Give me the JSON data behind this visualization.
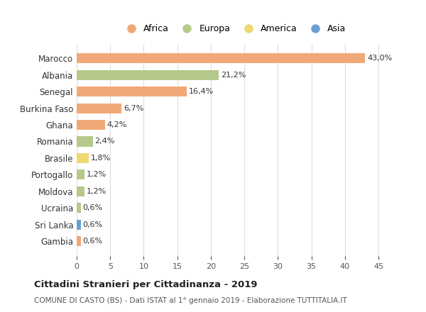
{
  "countries": [
    "Marocco",
    "Albania",
    "Senegal",
    "Burkina Faso",
    "Ghana",
    "Romania",
    "Brasile",
    "Portogallo",
    "Moldova",
    "Ucraina",
    "Sri Lanka",
    "Gambia"
  ],
  "values": [
    43.0,
    21.2,
    16.4,
    6.7,
    4.2,
    2.4,
    1.8,
    1.2,
    1.2,
    0.6,
    0.6,
    0.6
  ],
  "labels": [
    "43,0%",
    "21,2%",
    "16,4%",
    "6,7%",
    "4,2%",
    "2,4%",
    "1,8%",
    "1,2%",
    "1,2%",
    "0,6%",
    "0,6%",
    "0,6%"
  ],
  "colors": [
    "#F0A878",
    "#B5C98A",
    "#F0A878",
    "#F0A878",
    "#F0A878",
    "#B5C98A",
    "#F0D870",
    "#B5C98A",
    "#B5C98A",
    "#B5C98A",
    "#6A9FD0",
    "#F0A878"
  ],
  "legend_labels": [
    "Africa",
    "Europa",
    "America",
    "Asia"
  ],
  "legend_colors": [
    "#F0A878",
    "#B5C98A",
    "#F0D870",
    "#6A9FD0"
  ],
  "title": "Cittadini Stranieri per Cittadinanza - 2019",
  "subtitle": "COMUNE DI CASTO (BS) - Dati ISTAT al 1° gennaio 2019 - Elaborazione TUTTITALIA.IT",
  "xlim": [
    0,
    47
  ],
  "xticks": [
    0,
    5,
    10,
    15,
    20,
    25,
    30,
    35,
    40,
    45
  ],
  "background_color": "#ffffff",
  "grid_color": "#dddddd"
}
